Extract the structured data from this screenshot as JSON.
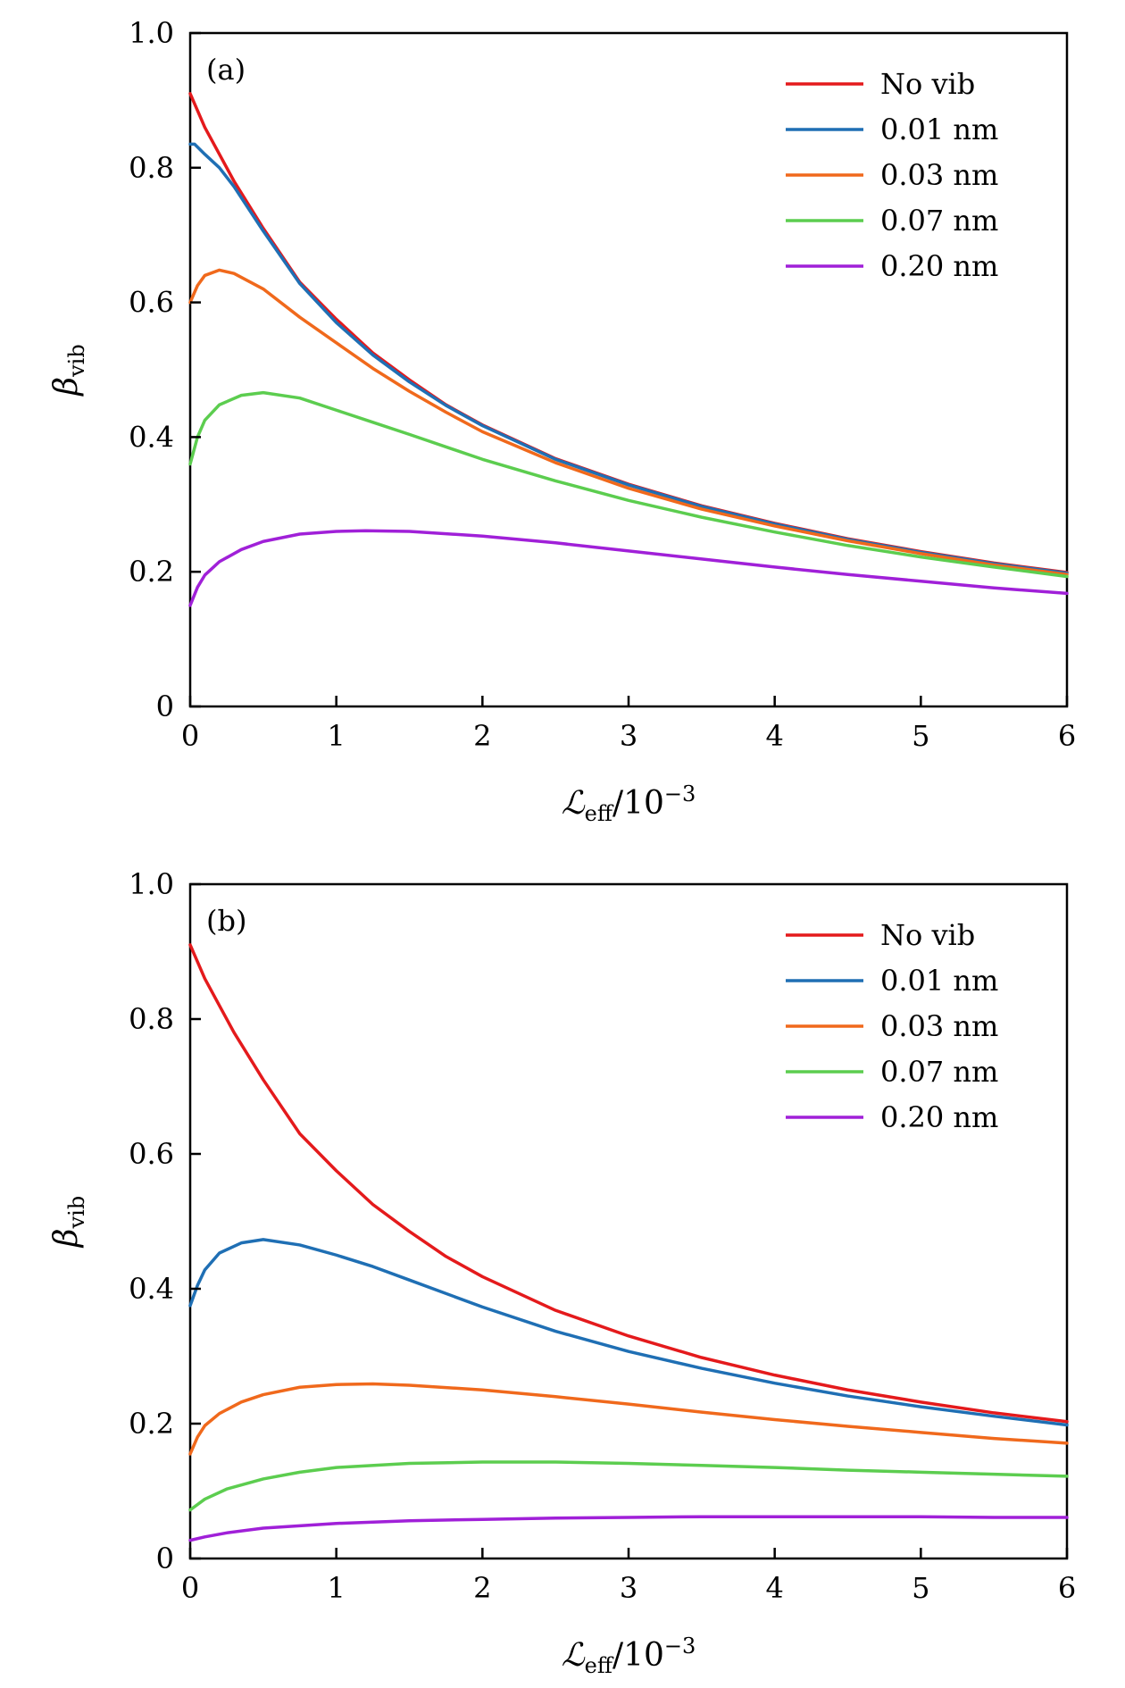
{
  "colors": {
    "no_vib": "#e41a1c",
    "nm_001": "#1f6fb4",
    "nm_003": "#f0691c",
    "nm_007": "#5ccd4f",
    "nm_020": "#a020d8"
  },
  "chart_data": [
    {
      "type": "line",
      "panel_label": "(a)",
      "xlabel": {
        "main": "ℒ",
        "sub": "eff",
        "rest": "/10",
        "sup": "−3"
      },
      "ylabel": {
        "main": "β",
        "sub": "vib"
      },
      "xlim": [
        0,
        6
      ],
      "ylim": [
        0,
        1.0
      ],
      "x_ticks": [
        "0",
        "1",
        "2",
        "3",
        "4",
        "5",
        "6"
      ],
      "y_ticks": [
        "0",
        "0.2",
        "0.4",
        "0.6",
        "0.8",
        "1.0"
      ],
      "legend_position": "top-right",
      "grid": false,
      "series": [
        {
          "name": "No vib",
          "color_key": "no_vib",
          "points": [
            [
              0,
              0.91
            ],
            [
              0.1,
              0.86
            ],
            [
              0.2,
              0.82
            ],
            [
              0.3,
              0.78
            ],
            [
              0.5,
              0.71
            ],
            [
              0.75,
              0.63
            ],
            [
              1,
              0.575
            ],
            [
              1.25,
              0.525
            ],
            [
              1.5,
              0.485
            ],
            [
              1.75,
              0.448
            ],
            [
              2,
              0.418
            ],
            [
              2.5,
              0.368
            ],
            [
              3,
              0.33
            ],
            [
              3.5,
              0.298
            ],
            [
              4,
              0.272
            ],
            [
              4.5,
              0.249
            ],
            [
              5,
              0.23
            ],
            [
              5.5,
              0.213
            ],
            [
              6,
              0.199
            ]
          ]
        },
        {
          "name": "0.01 nm",
          "color_key": "nm_001",
          "points": [
            [
              0,
              0.835
            ],
            [
              0.03,
              0.835
            ],
            [
              0.1,
              0.82
            ],
            [
              0.2,
              0.8
            ],
            [
              0.3,
              0.772
            ],
            [
              0.5,
              0.706
            ],
            [
              0.75,
              0.628
            ],
            [
              1,
              0.57
            ],
            [
              1.25,
              0.522
            ],
            [
              1.5,
              0.482
            ],
            [
              1.75,
              0.447
            ],
            [
              2,
              0.417
            ],
            [
              2.5,
              0.367
            ],
            [
              3,
              0.329
            ],
            [
              3.5,
              0.297
            ],
            [
              4,
              0.271
            ],
            [
              4.5,
              0.248
            ],
            [
              5,
              0.229
            ],
            [
              5.5,
              0.212
            ],
            [
              6,
              0.198
            ]
          ]
        },
        {
          "name": "0.03 nm",
          "color_key": "nm_003",
          "points": [
            [
              0,
              0.6
            ],
            [
              0.05,
              0.625
            ],
            [
              0.1,
              0.64
            ],
            [
              0.2,
              0.648
            ],
            [
              0.3,
              0.643
            ],
            [
              0.5,
              0.62
            ],
            [
              0.75,
              0.578
            ],
            [
              1,
              0.54
            ],
            [
              1.25,
              0.502
            ],
            [
              1.5,
              0.468
            ],
            [
              1.75,
              0.437
            ],
            [
              2,
              0.408
            ],
            [
              2.5,
              0.362
            ],
            [
              3,
              0.324
            ],
            [
              3.5,
              0.293
            ],
            [
              4,
              0.268
            ],
            [
              4.5,
              0.246
            ],
            [
              5,
              0.227
            ],
            [
              5.5,
              0.21
            ],
            [
              6,
              0.196
            ]
          ]
        },
        {
          "name": "0.07 nm",
          "color_key": "nm_007",
          "points": [
            [
              0,
              0.36
            ],
            [
              0.05,
              0.4
            ],
            [
              0.1,
              0.425
            ],
            [
              0.2,
              0.448
            ],
            [
              0.35,
              0.462
            ],
            [
              0.5,
              0.466
            ],
            [
              0.75,
              0.458
            ],
            [
              1,
              0.44
            ],
            [
              1.25,
              0.422
            ],
            [
              1.5,
              0.404
            ],
            [
              2,
              0.367
            ],
            [
              2.5,
              0.335
            ],
            [
              3,
              0.306
            ],
            [
              3.5,
              0.281
            ],
            [
              4,
              0.259
            ],
            [
              4.5,
              0.239
            ],
            [
              5,
              0.222
            ],
            [
              5.5,
              0.207
            ],
            [
              6,
              0.193
            ]
          ]
        },
        {
          "name": "0.20 nm",
          "color_key": "nm_020",
          "points": [
            [
              0,
              0.15
            ],
            [
              0.05,
              0.177
            ],
            [
              0.1,
              0.195
            ],
            [
              0.2,
              0.215
            ],
            [
              0.35,
              0.233
            ],
            [
              0.5,
              0.245
            ],
            [
              0.75,
              0.256
            ],
            [
              1,
              0.26
            ],
            [
              1.2,
              0.261
            ],
            [
              1.5,
              0.26
            ],
            [
              2,
              0.253
            ],
            [
              2.5,
              0.243
            ],
            [
              3,
              0.231
            ],
            [
              3.5,
              0.219
            ],
            [
              4,
              0.207
            ],
            [
              4.5,
              0.196
            ],
            [
              5,
              0.186
            ],
            [
              5.5,
              0.176
            ],
            [
              6,
              0.168
            ]
          ]
        }
      ]
    },
    {
      "type": "line",
      "panel_label": "(b)",
      "xlabel": {
        "main": "ℒ",
        "sub": "eff",
        "rest": "/10",
        "sup": "−3"
      },
      "ylabel": {
        "main": "β",
        "sub": "vib"
      },
      "xlim": [
        0,
        6
      ],
      "ylim": [
        0,
        1.0
      ],
      "x_ticks": [
        "0",
        "1",
        "2",
        "3",
        "4",
        "5",
        "6"
      ],
      "y_ticks": [
        "0",
        "0.2",
        "0.4",
        "0.6",
        "0.8",
        "1.0"
      ],
      "legend_position": "top-right",
      "grid": false,
      "series": [
        {
          "name": "No vib",
          "color_key": "no_vib",
          "points": [
            [
              0,
              0.91
            ],
            [
              0.1,
              0.86
            ],
            [
              0.2,
              0.82
            ],
            [
              0.3,
              0.78
            ],
            [
              0.5,
              0.71
            ],
            [
              0.75,
              0.63
            ],
            [
              1,
              0.575
            ],
            [
              1.25,
              0.525
            ],
            [
              1.5,
              0.485
            ],
            [
              1.75,
              0.448
            ],
            [
              2,
              0.418
            ],
            [
              2.5,
              0.368
            ],
            [
              3,
              0.33
            ],
            [
              3.5,
              0.298
            ],
            [
              4,
              0.272
            ],
            [
              4.5,
              0.25
            ],
            [
              5,
              0.232
            ],
            [
              5.5,
              0.216
            ],
            [
              6,
              0.203
            ]
          ]
        },
        {
          "name": "0.01 nm",
          "color_key": "nm_001",
          "points": [
            [
              0,
              0.375
            ],
            [
              0.05,
              0.405
            ],
            [
              0.1,
              0.428
            ],
            [
              0.2,
              0.453
            ],
            [
              0.35,
              0.468
            ],
            [
              0.5,
              0.473
            ],
            [
              0.75,
              0.465
            ],
            [
              1,
              0.45
            ],
            [
              1.25,
              0.433
            ],
            [
              1.5,
              0.413
            ],
            [
              2,
              0.373
            ],
            [
              2.5,
              0.337
            ],
            [
              3,
              0.307
            ],
            [
              3.5,
              0.282
            ],
            [
              4,
              0.26
            ],
            [
              4.5,
              0.241
            ],
            [
              5,
              0.225
            ],
            [
              5.5,
              0.211
            ],
            [
              6,
              0.198
            ]
          ]
        },
        {
          "name": "0.03 nm",
          "color_key": "nm_003",
          "points": [
            [
              0,
              0.155
            ],
            [
              0.05,
              0.18
            ],
            [
              0.1,
              0.197
            ],
            [
              0.2,
              0.215
            ],
            [
              0.35,
              0.232
            ],
            [
              0.5,
              0.243
            ],
            [
              0.75,
              0.254
            ],
            [
              1,
              0.258
            ],
            [
              1.25,
              0.259
            ],
            [
              1.5,
              0.257
            ],
            [
              2,
              0.25
            ],
            [
              2.5,
              0.24
            ],
            [
              3,
              0.229
            ],
            [
              3.5,
              0.217
            ],
            [
              4,
              0.206
            ],
            [
              4.5,
              0.196
            ],
            [
              5,
              0.187
            ],
            [
              5.5,
              0.178
            ],
            [
              6,
              0.171
            ]
          ]
        },
        {
          "name": "0.07 nm",
          "color_key": "nm_007",
          "points": [
            [
              0,
              0.072
            ],
            [
              0.1,
              0.088
            ],
            [
              0.25,
              0.103
            ],
            [
              0.5,
              0.118
            ],
            [
              0.75,
              0.128
            ],
            [
              1,
              0.135
            ],
            [
              1.5,
              0.141
            ],
            [
              2,
              0.143
            ],
            [
              2.5,
              0.143
            ],
            [
              3,
              0.141
            ],
            [
              3.5,
              0.138
            ],
            [
              4,
              0.135
            ],
            [
              4.5,
              0.131
            ],
            [
              5,
              0.128
            ],
            [
              5.5,
              0.125
            ],
            [
              6,
              0.122
            ]
          ]
        },
        {
          "name": "0.20 nm",
          "color_key": "nm_020",
          "points": [
            [
              0,
              0.027
            ],
            [
              0.1,
              0.032
            ],
            [
              0.25,
              0.038
            ],
            [
              0.5,
              0.045
            ],
            [
              1,
              0.052
            ],
            [
              1.5,
              0.056
            ],
            [
              2,
              0.058
            ],
            [
              2.5,
              0.06
            ],
            [
              3,
              0.061
            ],
            [
              3.5,
              0.062
            ],
            [
              4,
              0.062
            ],
            [
              4.5,
              0.062
            ],
            [
              5,
              0.062
            ],
            [
              5.5,
              0.061
            ],
            [
              6,
              0.061
            ]
          ]
        }
      ]
    }
  ]
}
